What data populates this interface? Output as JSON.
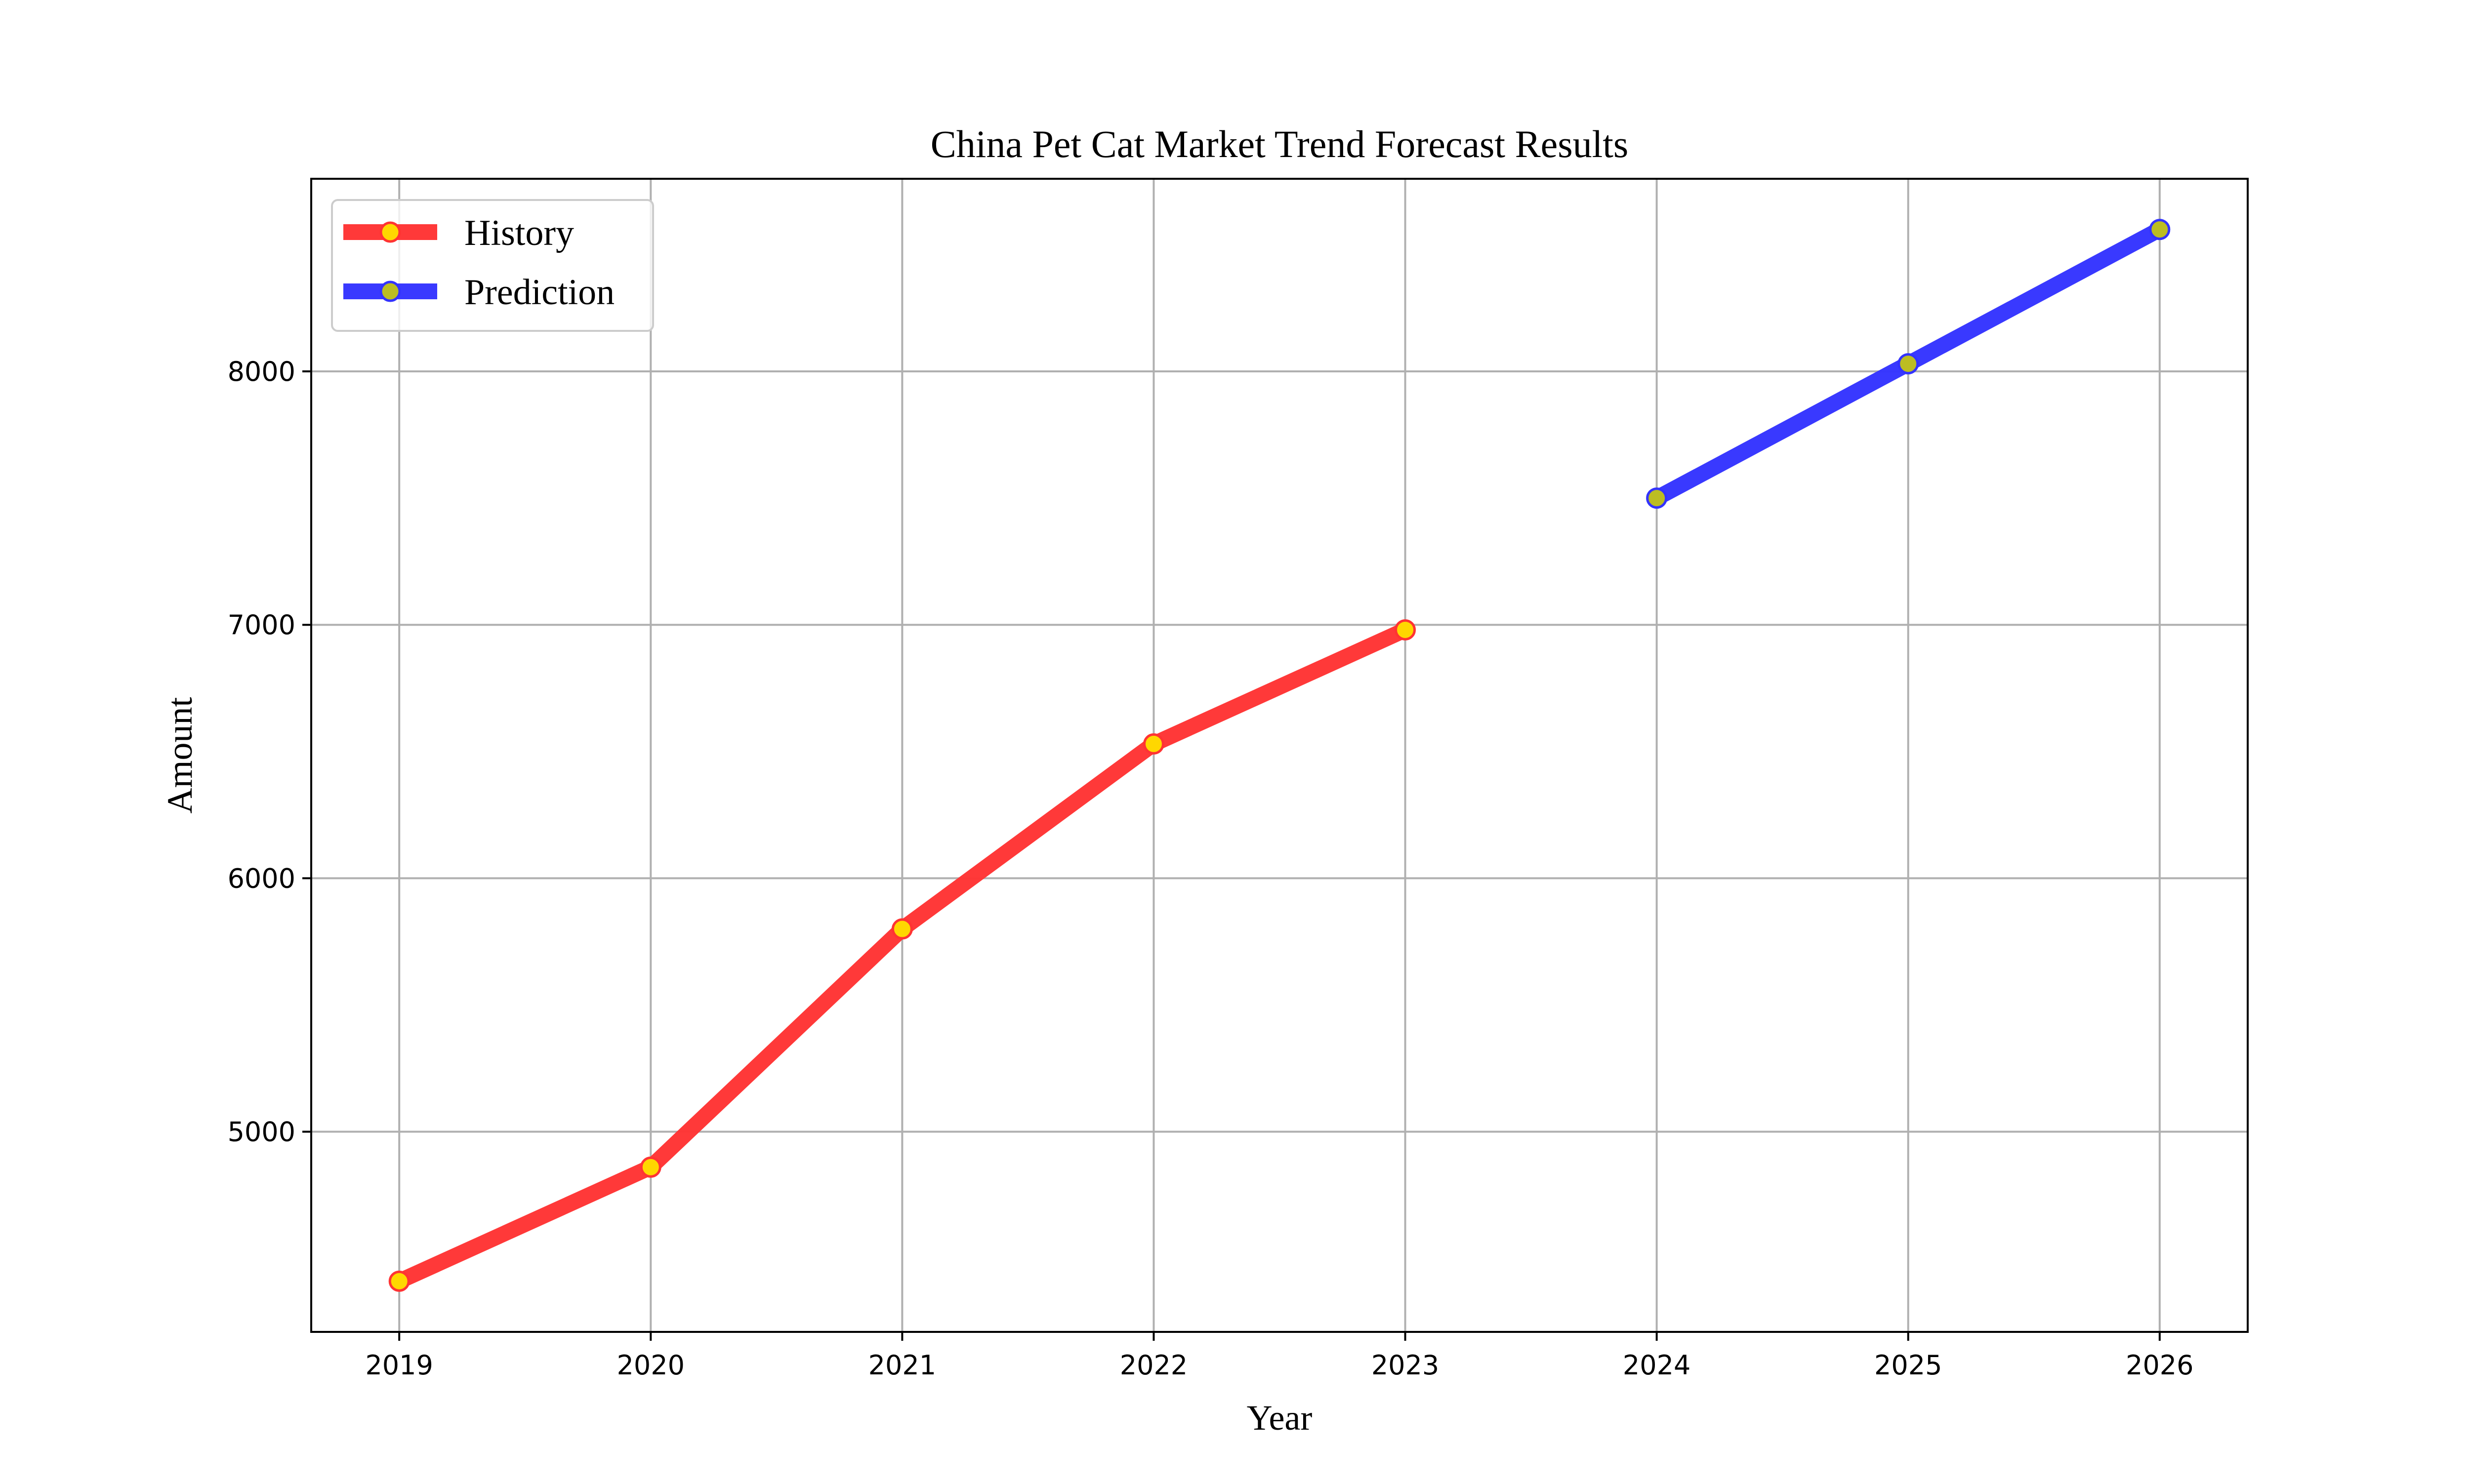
{
  "chart_data": {
    "type": "line",
    "title": "China Pet Cat Market Trend Forecast Results",
    "xlabel": "Year",
    "ylabel": "Amount",
    "x_ticks": [
      "2019",
      "2020",
      "2021",
      "2022",
      "2023",
      "2024",
      "2025",
      "2026"
    ],
    "y_ticks": [
      "5000",
      "6000",
      "7000",
      "8000"
    ],
    "xlim": [
      2018.65,
      2026.35
    ],
    "ylim": [
      4210,
      8760
    ],
    "grid": true,
    "legend_position": "top-left",
    "series": [
      {
        "name": "History",
        "color": "#ff3333",
        "marker_fill": "#ffd700",
        "marker_edge": "#ff3333",
        "x": [
          2019,
          2020,
          2021,
          2022,
          2023
        ],
        "values": [
          4410,
          4860,
          5800,
          6530,
          6980
        ]
      },
      {
        "name": "Prediction",
        "color": "#3333ff",
        "marker_fill": "#bcbd22",
        "marker_edge": "#3333ff",
        "x": [
          2024,
          2025,
          2026
        ],
        "values": [
          7500,
          8030,
          8560
        ]
      }
    ]
  }
}
